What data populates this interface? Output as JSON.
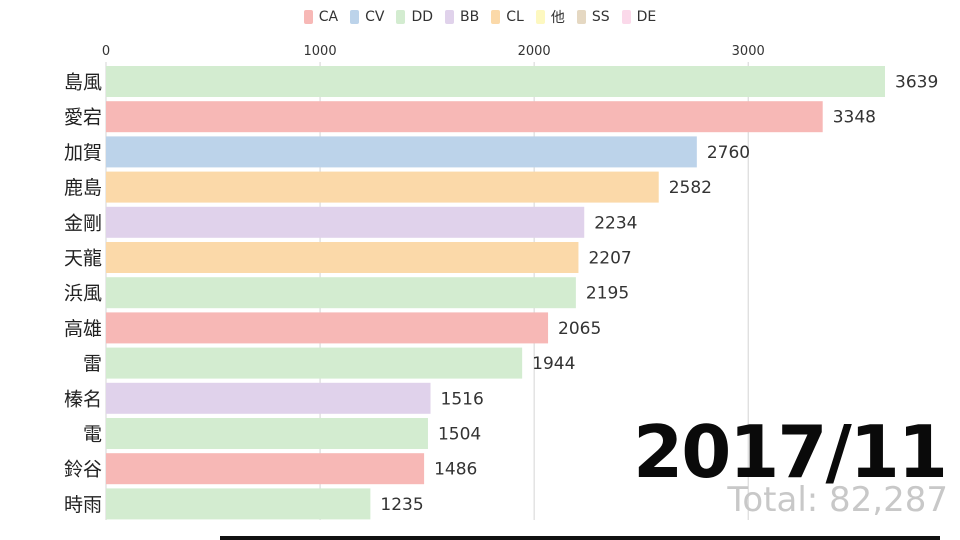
{
  "legend": [
    {
      "label": "CA",
      "color": "#f7b8b6"
    },
    {
      "label": "CV",
      "color": "#bcd3ea"
    },
    {
      "label": "DD",
      "color": "#d3ecd0"
    },
    {
      "label": "BB",
      "color": "#e0d2eb"
    },
    {
      "label": "CL",
      "color": "#fbd9a9"
    },
    {
      "label": "他",
      "color": "#fdf8c0"
    },
    {
      "label": "SS",
      "color": "#e5d8c2"
    },
    {
      "label": "DE",
      "color": "#fbd9ea"
    }
  ],
  "chart_data": {
    "type": "bar",
    "orientation": "horizontal",
    "categories": [
      "島風",
      "愛宕",
      "加賀",
      "鹿島",
      "金剛",
      "天龍",
      "浜風",
      "高雄",
      "雷",
      "榛名",
      "電",
      "鈴谷",
      "時雨"
    ],
    "values": [
      3639,
      3348,
      2760,
      2582,
      2234,
      2207,
      2195,
      2065,
      1944,
      1516,
      1504,
      1486,
      1235
    ],
    "bar_types": [
      "DD",
      "CA",
      "CV",
      "CL",
      "BB",
      "CL",
      "DD",
      "CA",
      "DD",
      "BB",
      "DD",
      "CA",
      "DD"
    ],
    "xlim": [
      0,
      3639
    ],
    "xticks": [
      0,
      1000,
      2000,
      3000
    ],
    "grid": true,
    "legend_position": "top"
  },
  "period": "2017/11",
  "total": "Total: 82,287"
}
